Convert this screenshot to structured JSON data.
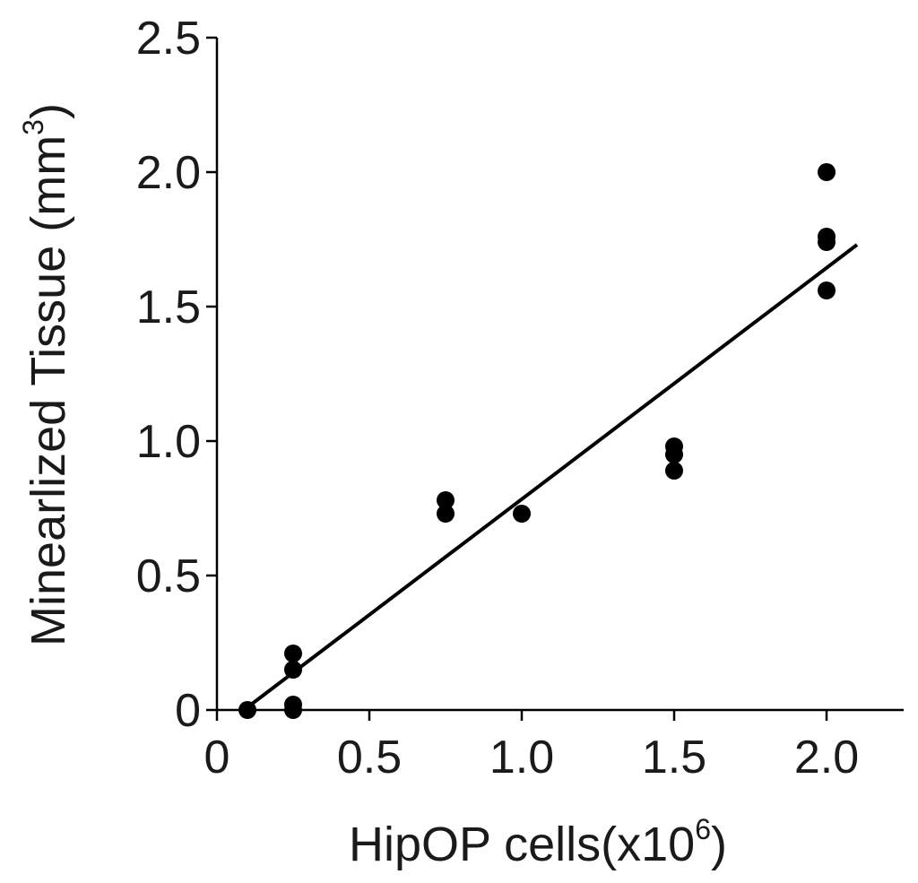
{
  "chart_data": {
    "type": "scatter",
    "title": "",
    "xlabel": "HipOP cells(x10",
    "xlabel_sup": "6",
    "xlabel_close": ")",
    "ylabel": "Minearlized Tissue (mm",
    "ylabel_sup": "3",
    "ylabel_close": ")",
    "xlim": [
      0,
      2.25
    ],
    "ylim": [
      0,
      2.5
    ],
    "x_ticks": [
      {
        "value": 0,
        "label": "0"
      },
      {
        "value": 0.5,
        "label": "0.5"
      },
      {
        "value": 1.0,
        "label": "1.0"
      },
      {
        "value": 1.5,
        "label": "1.5"
      },
      {
        "value": 2.0,
        "label": "2.0"
      }
    ],
    "y_ticks": [
      {
        "value": 0,
        "label": "0"
      },
      {
        "value": 0.5,
        "label": "0.5"
      },
      {
        "value": 1.0,
        "label": "1.0"
      },
      {
        "value": 1.5,
        "label": "1.5"
      },
      {
        "value": 2.0,
        "label": "2.0"
      },
      {
        "value": 2.5,
        "label": "2.5"
      }
    ],
    "points": [
      {
        "x": 0.1,
        "y": 0.0
      },
      {
        "x": 0.25,
        "y": 0.21
      },
      {
        "x": 0.25,
        "y": 0.15
      },
      {
        "x": 0.25,
        "y": 0.02
      },
      {
        "x": 0.25,
        "y": 0.0
      },
      {
        "x": 0.75,
        "y": 0.78
      },
      {
        "x": 0.75,
        "y": 0.73
      },
      {
        "x": 1.0,
        "y": 0.73
      },
      {
        "x": 1.5,
        "y": 0.98
      },
      {
        "x": 1.5,
        "y": 0.95
      },
      {
        "x": 1.5,
        "y": 0.89
      },
      {
        "x": 2.0,
        "y": 2.0
      },
      {
        "x": 2.0,
        "y": 1.76
      },
      {
        "x": 2.0,
        "y": 1.74
      },
      {
        "x": 2.0,
        "y": 1.56
      }
    ],
    "fit_line": {
      "x": [
        0.1,
        2.1
      ],
      "y": [
        0.01,
        1.73
      ]
    },
    "grid": false,
    "legend": "none",
    "colors": {
      "points": "#000000",
      "line": "#000000",
      "text": "#1a1a1a"
    }
  }
}
